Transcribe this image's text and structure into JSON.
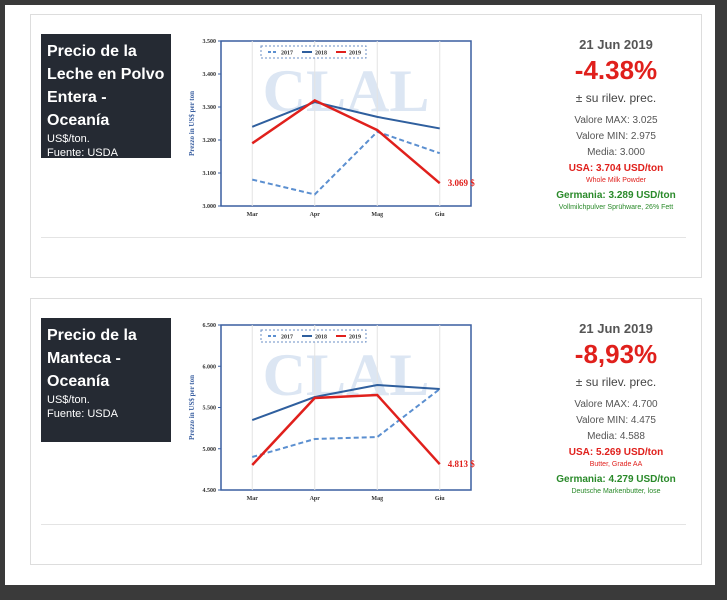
{
  "panels": [
    {
      "title": "Precio de la Leche en Polvo Entera - Oceanía",
      "unit": "US$/ton.",
      "source": "Fuente: USDA",
      "date": "21 Jun 2019",
      "change": "-4.38%",
      "change_note": "± su rilev. prec.",
      "max": "Valore MAX: 3.025",
      "min": "Valore MIN: 2.975",
      "mean": "Media: 3.000",
      "usa": "USA: 3.704 USD/ton",
      "usa_note": "Whole Milk Powder",
      "germany": "Germania: 3.289 USD/ton",
      "germany_note": "Vollmilchpulver Sprühware, 26% Fett"
    },
    {
      "title": "Precio de la Manteca - Oceanía",
      "unit": "US$/ton.",
      "source": "Fuente: USDA",
      "date": "21 Jun 2019",
      "change": "-8,93%",
      "change_note": "± su rilev. prec.",
      "max": "Valore MAX: 4.700",
      "min": "Valore MIN: 4.475",
      "mean": "Media: 4.588",
      "usa": "USA: 5.269 USD/ton",
      "usa_note": "Butter, Grade AA",
      "germany": "Germania: 4.279 USD/ton",
      "germany_note": "Deutsche Markenbutter, lose"
    }
  ],
  "chart_data": [
    {
      "type": "line",
      "y_label": "Prezzo in US$ per ton",
      "watermark": "CLAL",
      "annotation": "3.069 $",
      "categories": [
        "Mar",
        "Apr",
        "Mag",
        "Giu"
      ],
      "series": [
        {
          "name": "2017",
          "color": "#5b8fd0",
          "style": "dashed",
          "values": [
            3080,
            3035,
            3225,
            3160
          ]
        },
        {
          "name": "2018",
          "color": "#2f5f9e",
          "style": "solid",
          "values": [
            3240,
            3315,
            3270,
            3235
          ]
        },
        {
          "name": "2019",
          "color": "#e0201c",
          "style": "solid",
          "values": [
            3190,
            3320,
            3230,
            3069
          ]
        }
      ],
      "ylim": [
        3000,
        3500
      ],
      "yticks": [
        {
          "value": 3000,
          "label": "3.000"
        },
        {
          "value": 3100,
          "label": "3.100"
        },
        {
          "value": 3200,
          "label": "3.200"
        },
        {
          "value": 3300,
          "label": "3.300"
        },
        {
          "value": 3400,
          "label": "3.400"
        },
        {
          "value": 3500,
          "label": "3.500"
        }
      ],
      "grid": true
    },
    {
      "type": "line",
      "y_label": "Prezzo in US$ per ton",
      "watermark": "CLAL",
      "annotation": "4.813 $",
      "categories": [
        "Mar",
        "Apr",
        "Mag",
        "Giu"
      ],
      "series": [
        {
          "name": "2017",
          "color": "#5b8fd0",
          "style": "dashed",
          "values": [
            4900,
            5118,
            5142,
            5724
          ]
        },
        {
          "name": "2018",
          "color": "#2f5f9e",
          "style": "solid",
          "values": [
            5348,
            5627,
            5773,
            5724
          ]
        },
        {
          "name": "2019",
          "color": "#e0201c",
          "style": "solid",
          "values": [
            4803,
            5615,
            5651,
            4813
          ]
        }
      ],
      "ylim": [
        4500,
        6500
      ],
      "yticks": [
        {
          "value": 4500,
          "label": "4.500"
        },
        {
          "value": 5000,
          "label": "5.000"
        },
        {
          "value": 5500,
          "label": "5.500"
        },
        {
          "value": 6000,
          "label": "6.000"
        },
        {
          "value": 6500,
          "label": "6.500"
        }
      ],
      "grid": true
    }
  ]
}
